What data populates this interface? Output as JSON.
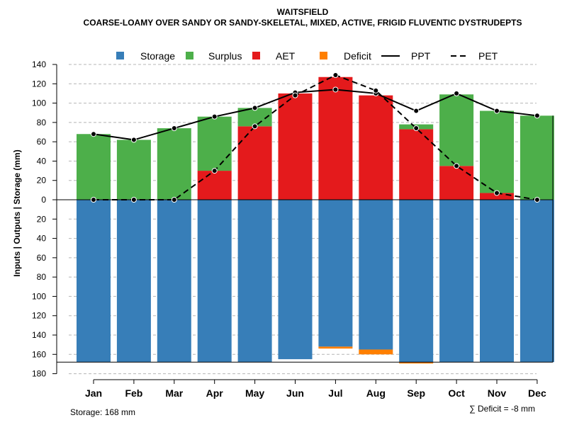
{
  "chart_data": {
    "type": "bar",
    "title": "WAITSFIELD",
    "subtitle": "COARSE-LOAMY OVER SANDY OR SANDY-SKELETAL, MIXED, ACTIVE, FRIGID FLUVENTIC DYSTRUDEPTS",
    "ylabel": "Inputs | Outputs | Storage    (mm)",
    "ylim": [
      -180,
      140
    ],
    "yticks": [
      -180,
      -160,
      -140,
      -120,
      -100,
      -80,
      -60,
      -40,
      -20,
      0,
      20,
      40,
      60,
      80,
      100,
      120,
      140
    ],
    "ytick_labels": [
      "180",
      "160",
      "140",
      "120",
      "100",
      "80",
      "60",
      "40",
      "20",
      "0",
      "20",
      "40",
      "60",
      "80",
      "100",
      "120",
      "140"
    ],
    "categories": [
      "Jan",
      "Feb",
      "Mar",
      "Apr",
      "May",
      "Jun",
      "Jul",
      "Aug",
      "Sep",
      "Oct",
      "Nov",
      "Dec"
    ],
    "series": [
      {
        "name": "Storage",
        "color": "#377EB8",
        "values": [
          168,
          168,
          168,
          168,
          168,
          165,
          152,
          155,
          168,
          168,
          168,
          168
        ]
      },
      {
        "name": "Surplus",
        "color": "#4DAF4A",
        "values": [
          68,
          62,
          74,
          56,
          19,
          0,
          0,
          0,
          5,
          74,
          85,
          87
        ]
      },
      {
        "name": "AET",
        "color": "#E41A1C",
        "values": [
          0,
          0,
          0,
          30,
          76,
          110,
          127,
          108,
          73,
          35,
          7,
          0
        ]
      },
      {
        "name": "Deficit",
        "color": "#FF7F00",
        "values": [
          0,
          0,
          0,
          0,
          0,
          0,
          -2,
          -5,
          -1,
          0,
          0,
          0
        ]
      }
    ],
    "lines": [
      {
        "name": "PPT",
        "style": "solid",
        "values": [
          68,
          62,
          74,
          86,
          95,
          111,
          114,
          110,
          92,
          110,
          92,
          87
        ]
      },
      {
        "name": "PET",
        "style": "dashed",
        "values": [
          0,
          0,
          0,
          30,
          76,
          108,
          129,
          113,
          74,
          35,
          7,
          0
        ]
      }
    ],
    "legend": [
      "Storage",
      "Surplus",
      "AET",
      "Deficit",
      "PPT",
      "PET"
    ],
    "legend_position": "top",
    "grid": true
  },
  "footer": {
    "storage_note": "Storage: 168 mm",
    "deficit_note": "∑ Deficit = -8 mm"
  }
}
